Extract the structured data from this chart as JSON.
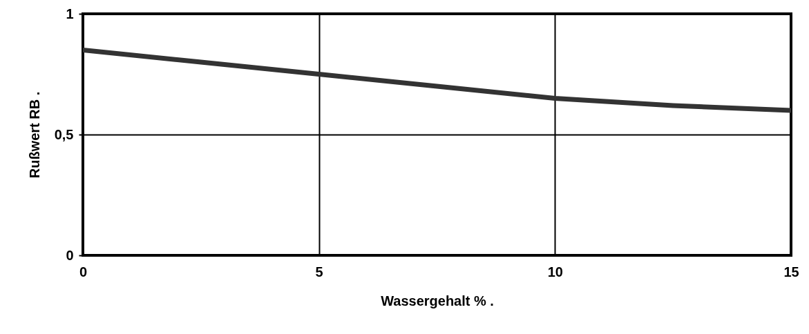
{
  "chart_data": {
    "type": "line",
    "xlabel": "Wassergehalt %   .",
    "ylabel": "Rußwert RB .",
    "x": [
      0,
      2.5,
      5,
      7.5,
      10,
      12.5,
      15
    ],
    "series": [
      {
        "color": "#333333",
        "values": [
          0.85,
          0.8,
          0.75,
          0.7,
          0.65,
          0.62,
          0.6
        ]
      }
    ],
    "xlim": [
      0,
      15
    ],
    "xticks": [
      0,
      5,
      10,
      15
    ],
    "ylim": [
      0,
      1
    ],
    "yticks": [
      0,
      {
        "value": 0.5,
        "label": "0,5"
      },
      1
    ],
    "grid": true,
    "line_style": "solid"
  }
}
